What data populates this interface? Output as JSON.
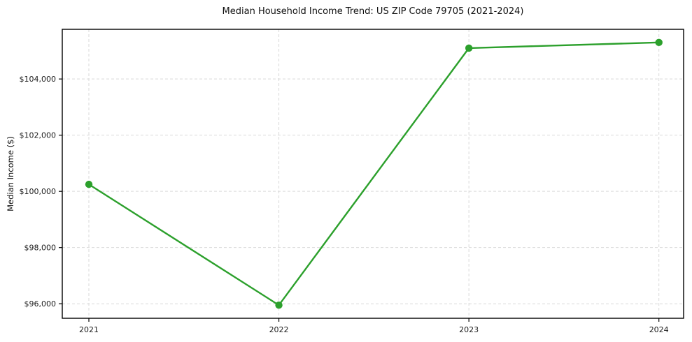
{
  "figure": {
    "background": "#ffffff"
  },
  "chart_data": {
    "type": "line",
    "title": "Median Household Income Trend: US ZIP Code 79705 (2021-2024)",
    "xlabel": "",
    "ylabel": "Median Income ($)",
    "categories": [
      "2021",
      "2022",
      "2023",
      "2024"
    ],
    "x": [
      2021,
      2022,
      2023,
      2024
    ],
    "values": [
      100250,
      95950,
      105100,
      105300
    ],
    "xlim": [
      2020.86,
      2024.13
    ],
    "ylim": [
      95483,
      105768
    ],
    "yticks": [
      {
        "value": 96000,
        "label": "$96,000"
      },
      {
        "value": 98000,
        "label": "$98,000"
      },
      {
        "value": 100000,
        "label": "$100,000"
      },
      {
        "value": 102000,
        "label": "$102,000"
      },
      {
        "value": 104000,
        "label": "$104,000"
      }
    ],
    "grid": true,
    "grid_style": "dashed",
    "legend": "none",
    "line_color": "#2ca02c",
    "marker": "circle",
    "grid_color": "#d9d9d9",
    "axis_color": "#000000",
    "text_color": "#1a1a1a"
  }
}
